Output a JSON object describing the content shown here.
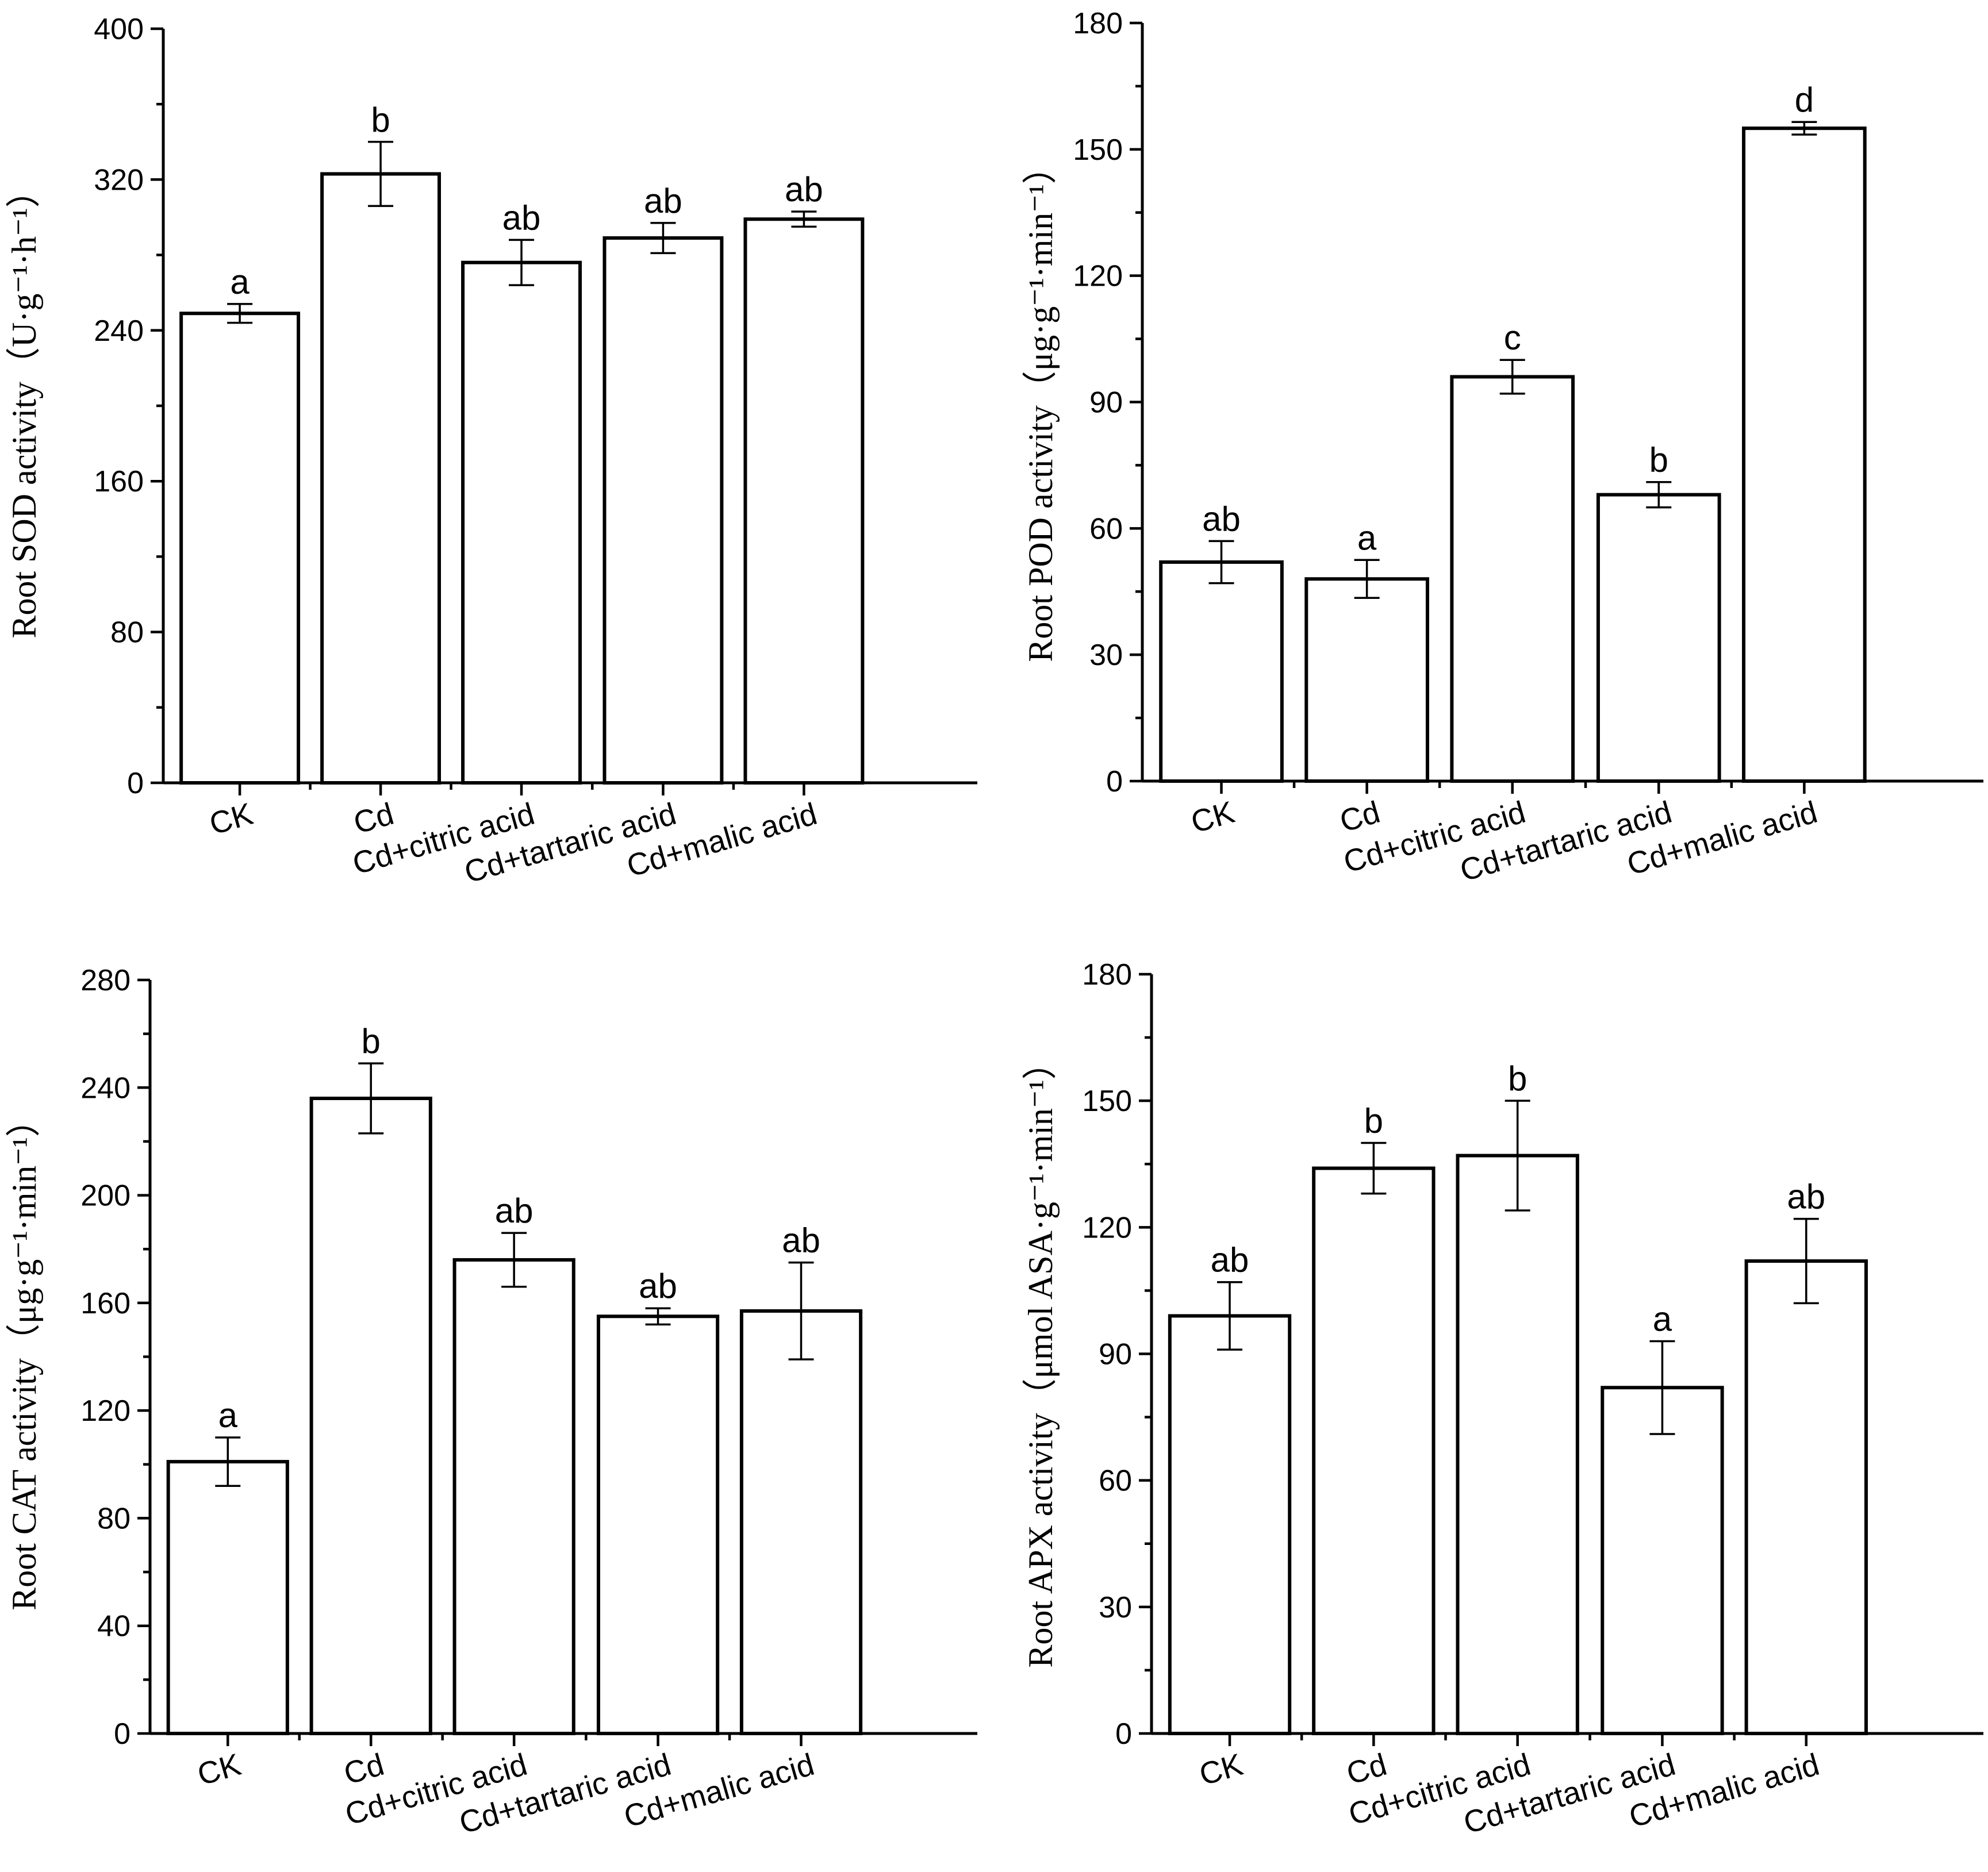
{
  "chart_data": [
    {
      "type": "bar",
      "panel": "top-left",
      "categories": [
        "CK",
        "Cd",
        "Cd+citric acid",
        "Cd+tartaric acid",
        "Cd+malic acid"
      ],
      "values": [
        249,
        323,
        276,
        289,
        299
      ],
      "errors": [
        5,
        17,
        12,
        8,
        4
      ],
      "labels": [
        "a",
        "b",
        "ab",
        "ab",
        "ab"
      ],
      "ylabel_main": "Root SOD activity",
      "ylabel_unit": "（U·g⁻¹·h⁻¹）",
      "ylim": [
        0,
        400
      ],
      "yticks": [
        "0",
        "80",
        "160",
        "240",
        "320",
        "400"
      ],
      "yticks_values": [
        0,
        80,
        160,
        240,
        320,
        400
      ]
    },
    {
      "type": "bar",
      "panel": "top-right",
      "categories": [
        "CK",
        "Cd",
        "Cd+citric acid",
        "Cd+tartaric acid",
        "Cd+malic acid"
      ],
      "values": [
        52,
        48,
        96,
        68,
        155
      ],
      "errors": [
        5,
        4.5,
        4,
        3,
        1.5
      ],
      "labels": [
        "ab",
        "a",
        "c",
        "b",
        "d"
      ],
      "ylabel_main": "Root POD activity",
      "ylabel_unit": "（μg·g⁻¹·min⁻¹）",
      "ylim": [
        0,
        180
      ],
      "yticks": [
        "0",
        "30",
        "60",
        "90",
        "120",
        "150",
        "180"
      ],
      "yticks_values": [
        0,
        30,
        60,
        90,
        120,
        150,
        180
      ]
    },
    {
      "type": "bar",
      "panel": "bottom-left",
      "categories": [
        "CK",
        "Cd",
        "Cd+citric acid",
        "Cd+tartaric acid",
        "Cd+malic acid"
      ],
      "values": [
        101,
        236,
        176,
        155,
        157
      ],
      "errors": [
        9,
        13,
        10,
        3,
        18
      ],
      "labels": [
        "a",
        "b",
        "ab",
        "ab",
        "ab"
      ],
      "ylabel_main": "Root CAT activity",
      "ylabel_unit": "（μg·g⁻¹·min⁻¹）",
      "ylim": [
        0,
        280
      ],
      "yticks": [
        "0",
        "40",
        "80",
        "120",
        "160",
        "200",
        "240",
        "280"
      ],
      "yticks_values": [
        0,
        40,
        80,
        120,
        160,
        200,
        240,
        280
      ]
    },
    {
      "type": "bar",
      "panel": "bottom-right",
      "categories": [
        "CK",
        "Cd",
        "Cd+citric acid",
        "Cd+tartaric acid",
        "Cd+malic acid"
      ],
      "values": [
        99,
        134,
        137,
        82,
        112
      ],
      "errors": [
        8,
        6,
        13,
        11,
        10
      ],
      "labels": [
        "ab",
        "b",
        "b",
        "a",
        "ab"
      ],
      "ylabel_main": "Root APX activity",
      "ylabel_unit": "（μmol ASA·g⁻¹·min⁻¹）",
      "ylim": [
        0,
        180
      ],
      "yticks": [
        "0",
        "30",
        "60",
        "90",
        "120",
        "150",
        "180"
      ],
      "yticks_values": [
        0,
        30,
        60,
        90,
        120,
        150,
        180
      ]
    }
  ]
}
